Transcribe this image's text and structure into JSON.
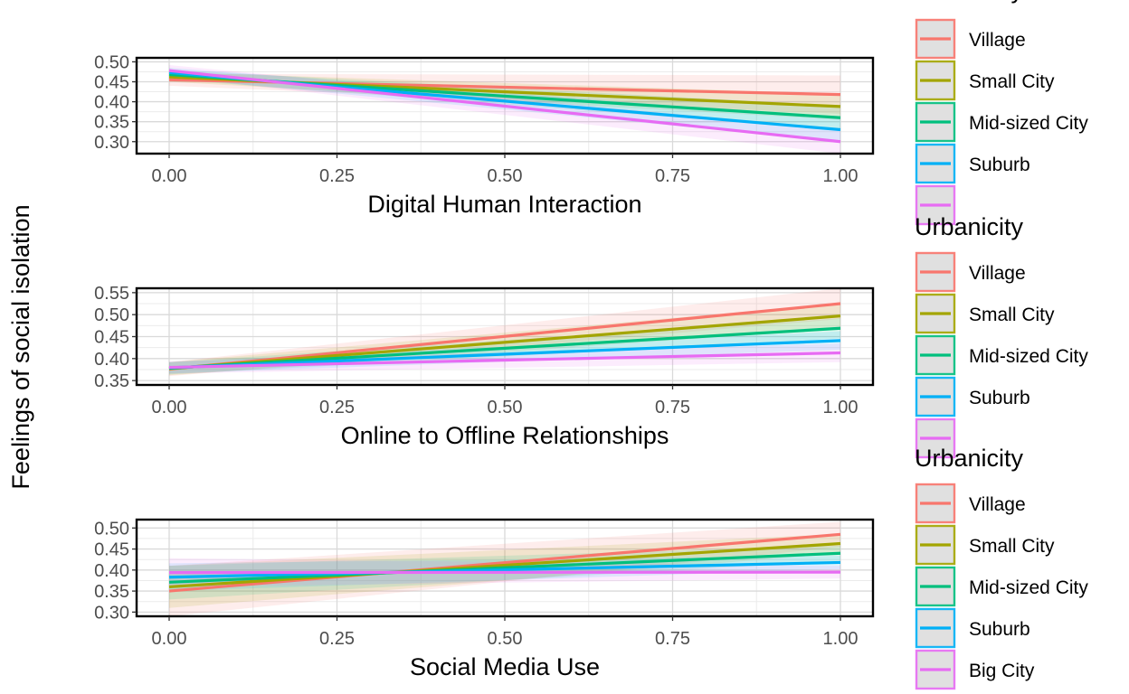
{
  "y_axis_label": "Feelings of social isolation",
  "legend_title": "Urbanicity",
  "legend_colors": {
    "Village": "#F8766D",
    "Small City": "#A3A500",
    "Mid-sized City": "#00BF7D",
    "Suburb": "#00B0F6",
    "Big City": "#E76BF3"
  },
  "chart_data": [
    {
      "type": "line",
      "xlabel": "Digital Human Interaction",
      "ylabel": "Feelings of social isolation",
      "xlim": [
        0,
        1
      ],
      "ylim": [
        0.27,
        0.51
      ],
      "x_ticks": [
        "0.00",
        "0.25",
        "0.50",
        "0.75",
        "1.00"
      ],
      "y_ticks": [
        "0.30",
        "0.35",
        "0.40",
        "0.45",
        "0.50"
      ],
      "x": [
        0,
        1
      ],
      "series": [
        {
          "name": "Village",
          "values": [
            0.455,
            0.418
          ],
          "ci": [
            [
              0.44,
              0.47
            ],
            [
              0.37,
              0.466
            ]
          ]
        },
        {
          "name": "Small City",
          "values": [
            0.462,
            0.388
          ],
          "ci": [
            [
              0.45,
              0.474
            ],
            [
              0.355,
              0.42
            ]
          ]
        },
        {
          "name": "Mid-sized City",
          "values": [
            0.468,
            0.36
          ],
          "ci": [
            [
              0.456,
              0.48
            ],
            [
              0.33,
              0.39
            ]
          ]
        },
        {
          "name": "Suburb",
          "values": [
            0.473,
            0.33
          ],
          "ci": [
            [
              0.461,
              0.485
            ],
            [
              0.3,
              0.36
            ]
          ]
        },
        {
          "name": "Big City",
          "values": [
            0.478,
            0.3
          ],
          "ci": [
            [
              0.464,
              0.492
            ],
            [
              0.27,
              0.33
            ]
          ]
        }
      ],
      "legend_visible": [
        "Village",
        "Small City",
        "Mid-sized City",
        "Suburb",
        ""
      ]
    },
    {
      "type": "line",
      "xlabel": "Online to Offline Relationships",
      "ylabel": "Feelings of social isolation",
      "xlim": [
        0,
        1
      ],
      "ylim": [
        0.34,
        0.56
      ],
      "x_ticks": [
        "0.00",
        "0.25",
        "0.50",
        "0.75",
        "1.00"
      ],
      "y_ticks": [
        "0.35",
        "0.40",
        "0.45",
        "0.50",
        "0.55"
      ],
      "x": [
        0,
        1
      ],
      "series": [
        {
          "name": "Village",
          "values": [
            0.376,
            0.525
          ],
          "ci": [
            [
              0.36,
              0.392
            ],
            [
              0.49,
              0.56
            ]
          ]
        },
        {
          "name": "Small City",
          "values": [
            0.377,
            0.497
          ],
          "ci": [
            [
              0.362,
              0.392
            ],
            [
              0.468,
              0.526
            ]
          ]
        },
        {
          "name": "Mid-sized City",
          "values": [
            0.378,
            0.469
          ],
          "ci": [
            [
              0.364,
              0.392
            ],
            [
              0.446,
              0.492
            ]
          ]
        },
        {
          "name": "Suburb",
          "values": [
            0.379,
            0.441
          ],
          "ci": [
            [
              0.366,
              0.392
            ],
            [
              0.42,
              0.462
            ]
          ]
        },
        {
          "name": "Big City",
          "values": [
            0.38,
            0.413
          ],
          "ci": [
            [
              0.366,
              0.394
            ],
            [
              0.392,
              0.434
            ]
          ]
        }
      ],
      "legend_visible": [
        "Village",
        "Small City",
        "Mid-sized City",
        "Suburb",
        ""
      ]
    },
    {
      "type": "line",
      "xlabel": "Social Media Use",
      "ylabel": "Feelings of social isolation",
      "xlim": [
        0,
        1
      ],
      "ylim": [
        0.29,
        0.52
      ],
      "x_ticks": [
        "0.00",
        "0.25",
        "0.50",
        "0.75",
        "1.00"
      ],
      "y_ticks": [
        "0.30",
        "0.35",
        "0.40",
        "0.45",
        "0.50"
      ],
      "x": [
        0,
        1
      ],
      "series": [
        {
          "name": "Village",
          "values": [
            0.35,
            0.485
          ],
          "ci": [
            [
              0.29,
              0.41
            ],
            [
              0.455,
              0.515
            ]
          ]
        },
        {
          "name": "Small City",
          "values": [
            0.36,
            0.463
          ],
          "ci": [
            [
              0.31,
              0.41
            ],
            [
              0.44,
              0.486
            ]
          ]
        },
        {
          "name": "Mid-sized City",
          "values": [
            0.371,
            0.44
          ],
          "ci": [
            [
              0.33,
              0.41
            ],
            [
              0.422,
              0.458
            ]
          ]
        },
        {
          "name": "Suburb",
          "values": [
            0.383,
            0.418
          ],
          "ci": [
            [
              0.35,
              0.416
            ],
            [
              0.402,
              0.434
            ]
          ]
        },
        {
          "name": "Big City",
          "values": [
            0.394,
            0.395
          ],
          "ci": [
            [
              0.36,
              0.428
            ],
            [
              0.38,
              0.41
            ]
          ]
        }
      ],
      "legend_visible": [
        "Village",
        "Small City",
        "Mid-sized City",
        "Suburb",
        "Big City"
      ]
    }
  ]
}
